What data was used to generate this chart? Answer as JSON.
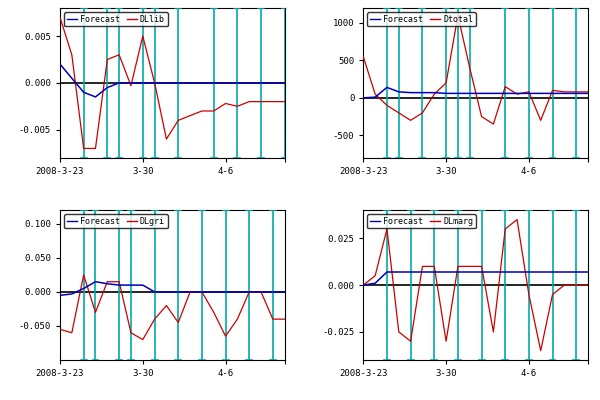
{
  "subplots": [
    {
      "legend1": "Forecast",
      "legend2": "DLlib",
      "ylim": [
        -0.008,
        0.008
      ],
      "yticks": [
        -0.005,
        0.0,
        0.005
      ],
      "forecast_x": [
        0,
        1,
        2,
        3,
        4,
        5,
        6,
        7,
        8,
        9,
        10,
        11,
        12,
        13,
        14,
        15,
        16,
        17,
        18,
        19
      ],
      "forecast_y": [
        0.002,
        0.0005,
        -0.001,
        -0.0015,
        -0.0005,
        0.0,
        0.0,
        0.0,
        0.0,
        0.0,
        0.0,
        0.0,
        0.0,
        0.0,
        0.0,
        0.0,
        0.0,
        0.0,
        0.0,
        0.0
      ],
      "dl_x": [
        0,
        1,
        2,
        3,
        4,
        5,
        6,
        7,
        8,
        9,
        10,
        11,
        12,
        13,
        14,
        15,
        16,
        17,
        18,
        19
      ],
      "dl_y": [
        0.007,
        0.003,
        -0.007,
        -0.007,
        0.0025,
        0.003,
        -0.0003,
        0.005,
        0.0,
        -0.006,
        -0.004,
        -0.0035,
        -0.003,
        -0.003,
        -0.0022,
        -0.0025,
        -0.002,
        -0.002,
        -0.002,
        -0.002
      ],
      "errbar_x": [
        2,
        4,
        5,
        7,
        8,
        10,
        13,
        15,
        17,
        19
      ],
      "errbar_ymax": [
        0.008,
        0.008,
        0.008,
        0.008,
        0.008,
        0.008,
        0.008,
        0.008,
        0.008,
        0.008
      ],
      "errbar_ymin": [
        -0.008,
        -0.008,
        -0.008,
        -0.008,
        -0.008,
        -0.008,
        -0.008,
        -0.008,
        -0.008,
        -0.008
      ]
    },
    {
      "legend1": "Forecast",
      "legend2": "Dtotal",
      "ylim": [
        -800,
        1200
      ],
      "yticks": [
        -500,
        0,
        500,
        1000
      ],
      "forecast_x": [
        0,
        1,
        2,
        3,
        4,
        5,
        6,
        7,
        8,
        9,
        10,
        11,
        12,
        13,
        14,
        15,
        16,
        17,
        18,
        19
      ],
      "forecast_y": [
        0,
        10,
        140,
        80,
        70,
        70,
        70,
        60,
        60,
        60,
        60,
        60,
        60,
        60,
        60,
        60,
        60,
        60,
        60,
        60
      ],
      "dl_x": [
        0,
        1,
        2,
        3,
        4,
        5,
        6,
        7,
        8,
        9,
        10,
        11,
        12,
        13,
        14,
        15,
        16,
        17,
        18,
        19
      ],
      "dl_y": [
        550,
        50,
        -100,
        -200,
        -300,
        -200,
        50,
        200,
        1100,
        400,
        -250,
        -350,
        150,
        50,
        80,
        -300,
        100,
        80,
        80,
        80
      ],
      "errbar_x": [
        2,
        3,
        5,
        7,
        8,
        9,
        12,
        14,
        16,
        18
      ],
      "errbar_ymax": [
        1200,
        1200,
        1200,
        1200,
        1200,
        1200,
        1200,
        1200,
        1200,
        1200
      ],
      "errbar_ymin": [
        -800,
        -800,
        -800,
        -800,
        -800,
        -800,
        -800,
        -800,
        -800,
        -800
      ]
    },
    {
      "legend1": "Forecast",
      "legend2": "DLgri",
      "ylim": [
        -0.1,
        0.12
      ],
      "yticks": [
        -0.05,
        0.0,
        0.05,
        0.1
      ],
      "forecast_x": [
        0,
        1,
        2,
        3,
        4,
        5,
        6,
        7,
        8,
        9,
        10,
        11,
        12,
        13,
        14,
        15,
        16,
        17,
        18,
        19
      ],
      "forecast_y": [
        -0.005,
        -0.003,
        0.005,
        0.015,
        0.012,
        0.01,
        0.01,
        0.01,
        0.0,
        0.0,
        0.0,
        0.0,
        0.0,
        0.0,
        0.0,
        0.0,
        0.0,
        0.0,
        0.0,
        0.0
      ],
      "dl_x": [
        0,
        1,
        2,
        3,
        4,
        5,
        6,
        7,
        8,
        9,
        10,
        11,
        12,
        13,
        14,
        15,
        16,
        17,
        18,
        19
      ],
      "dl_y": [
        -0.055,
        -0.06,
        0.025,
        -0.03,
        0.015,
        0.015,
        -0.06,
        -0.07,
        -0.04,
        -0.02,
        -0.045,
        0.0,
        0.0,
        -0.03,
        -0.065,
        -0.04,
        0.0,
        0.0,
        -0.04,
        -0.04
      ],
      "errbar_x": [
        2,
        3,
        5,
        6,
        8,
        10,
        12,
        14,
        16,
        18
      ],
      "errbar_ymax": [
        0.12,
        0.12,
        0.12,
        0.12,
        0.12,
        0.12,
        0.12,
        0.12,
        0.12,
        0.12
      ],
      "errbar_ymin": [
        -0.1,
        -0.1,
        -0.1,
        -0.1,
        -0.1,
        -0.1,
        -0.1,
        -0.1,
        -0.1,
        -0.1
      ]
    },
    {
      "legend1": "Forecast",
      "legend2": "DLmarg",
      "ylim": [
        -0.04,
        0.04
      ],
      "yticks": [
        -0.025,
        0.0,
        0.025
      ],
      "forecast_x": [
        0,
        1,
        2,
        3,
        4,
        5,
        6,
        7,
        8,
        9,
        10,
        11,
        12,
        13,
        14,
        15,
        16,
        17,
        18,
        19
      ],
      "forecast_y": [
        0,
        0.001,
        0.007,
        0.007,
        0.007,
        0.007,
        0.007,
        0.007,
        0.007,
        0.007,
        0.007,
        0.007,
        0.007,
        0.007,
        0.007,
        0.007,
        0.007,
        0.007,
        0.007,
        0.007
      ],
      "dl_x": [
        0,
        1,
        2,
        3,
        4,
        5,
        6,
        7,
        8,
        9,
        10,
        11,
        12,
        13,
        14,
        15,
        16,
        17,
        18,
        19
      ],
      "dl_y": [
        0.0,
        0.005,
        0.03,
        -0.025,
        -0.03,
        0.01,
        0.01,
        -0.03,
        0.01,
        0.01,
        0.01,
        -0.025,
        0.03,
        0.035,
        -0.005,
        -0.035,
        -0.005,
        0.0,
        0.0,
        0.0
      ],
      "errbar_x": [
        2,
        4,
        6,
        8,
        10,
        12,
        14,
        16,
        18
      ],
      "errbar_ymax": [
        0.04,
        0.04,
        0.04,
        0.04,
        0.04,
        0.04,
        0.04,
        0.04,
        0.04
      ],
      "errbar_ymin": [
        -0.04,
        -0.04,
        -0.04,
        -0.04,
        -0.04,
        -0.04,
        -0.04,
        -0.04,
        -0.04
      ]
    }
  ],
  "xtick_positions": [
    0,
    7,
    14,
    19
  ],
  "xtick_labels": [
    "2008-3-23",
    "3-30",
    "4-6",
    ""
  ],
  "forecast_color": "#0000bb",
  "dl_color": "#cc0000",
  "errbar_color": "#00aaaa",
  "zeroline_color": "#000000",
  "background_color": "#ffffff",
  "legend_fontsize": 6,
  "tick_fontsize": 6.5
}
